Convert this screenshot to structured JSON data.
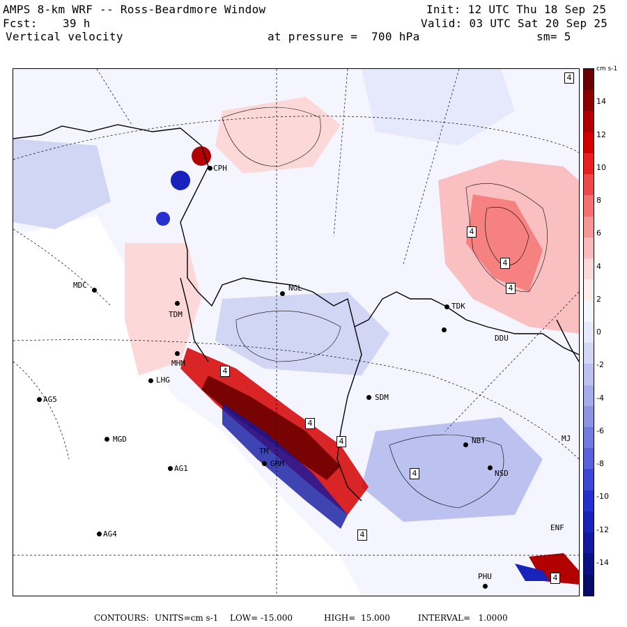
{
  "header": {
    "title": "AMPS 8-km WRF -- Ross-Beardmore Window",
    "init": "Init: 12 UTC Thu 18 Sep 25",
    "fcst_label": "Fcst:",
    "fcst_value": "39 h",
    "valid": "Valid: 03 UTC Sat 20 Sep 25",
    "field": "Vertical velocity",
    "pressure": "at pressure =  700 hPa",
    "smoothing": "sm= 5"
  },
  "colorbar": {
    "units": "cm s-1",
    "ticks": [
      "14",
      "12",
      "10",
      "8",
      "6",
      "4",
      "2",
      "0",
      "-2",
      "-4",
      "-6",
      "-8",
      "-10",
      "-12",
      "-14"
    ],
    "colors": [
      "#6b0000",
      "#8e0000",
      "#b20000",
      "#d40000",
      "#e82020",
      "#f04848",
      "#f57070",
      "#f89696",
      "#fbbaba",
      "#fdd8d8",
      "#ffecec",
      "#f5f5ff",
      "#e6e8fb",
      "#d2d6f5",
      "#bcc2ef",
      "#a5acea",
      "#8c94e4",
      "#737be0",
      "#5862dc",
      "#3d47d6",
      "#2530cf",
      "#1a22bc",
      "#1218a0",
      "#0b1084",
      "#060b6a"
    ]
  },
  "stations": [
    {
      "name": "CPH"
    },
    {
      "name": "MDC"
    },
    {
      "name": "NGL"
    },
    {
      "name": "TDM"
    },
    {
      "name": "MHM"
    },
    {
      "name": "LHG"
    },
    {
      "name": "AG5"
    },
    {
      "name": "SDM"
    },
    {
      "name": "MGD"
    },
    {
      "name": "NBT"
    },
    {
      "name": "AG1"
    },
    {
      "name": "TM"
    },
    {
      "name": "GRM"
    },
    {
      "name": "NSD"
    },
    {
      "name": "AG4"
    },
    {
      "name": "PHU"
    },
    {
      "name": "TDK"
    },
    {
      "name": "DDU"
    },
    {
      "name": "ENF"
    },
    {
      "name": "MJ"
    }
  ],
  "contour_labels": [
    "4",
    "4",
    "4",
    "4",
    "4",
    "4",
    "4",
    "4",
    "4",
    "4"
  ],
  "footer": {
    "contours_label": "CONTOURS:",
    "units": "UNITS=cm s-1",
    "low": "LOW= -15.000",
    "high": "HIGH=  15.000",
    "interval": "INTERVAL=   1.0000"
  }
}
